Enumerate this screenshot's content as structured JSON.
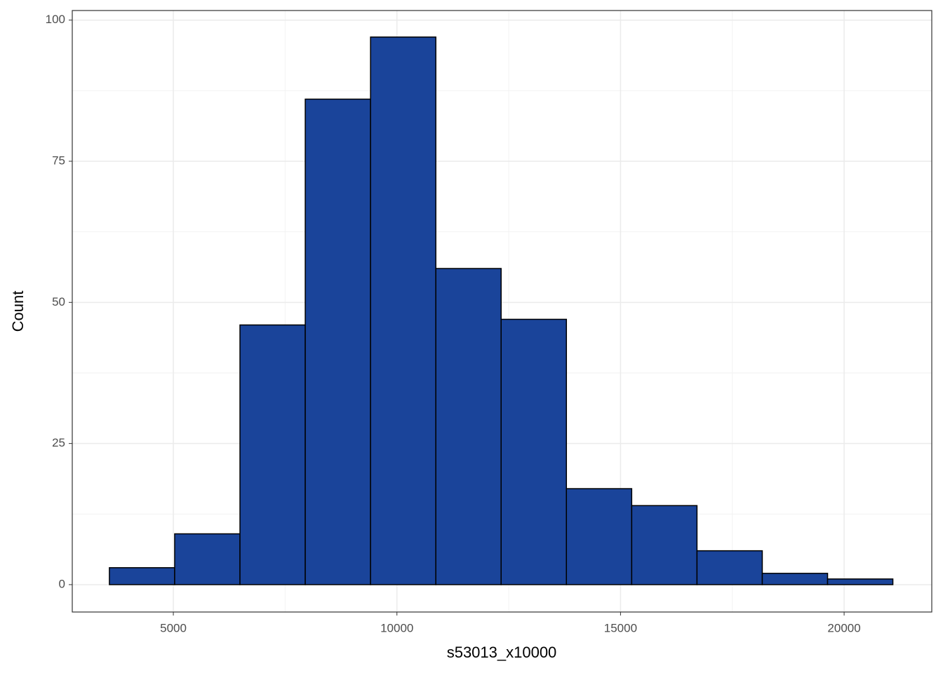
{
  "chart_data": {
    "type": "histogram",
    "x_label": "s53013_x10000",
    "y_label": "Count",
    "bins": [
      3570,
      5030,
      6490,
      7950,
      9410,
      10870,
      12330,
      13790,
      15250,
      16710,
      18170,
      19630,
      21090
    ],
    "values": [
      3,
      9,
      46,
      86,
      97,
      56,
      47,
      17,
      14,
      6,
      2,
      1
    ],
    "color": "#1a449a",
    "edge_color": "#000000",
    "xlim": [
      2740,
      21960
    ],
    "xticks": [
      5000,
      10000,
      15000,
      20000
    ],
    "ylim": [
      -4.85,
      101.7
    ],
    "yticks": [
      0,
      25,
      50,
      75,
      100
    ],
    "grid": true
  }
}
